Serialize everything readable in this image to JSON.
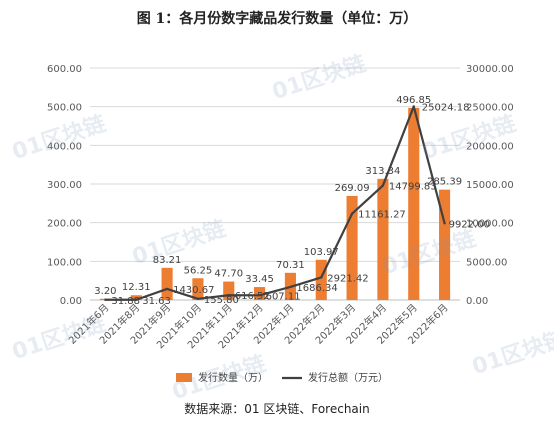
{
  "title": "图 1：各月份数字藏品发行数量（单位：万）",
  "source": "数据来源：01 区块链、Forechain",
  "watermark": "01区块链",
  "colors": {
    "bar": "#ED7D31",
    "line": "#404040",
    "axis_text": "#595959",
    "grid": "#D9D9D9"
  },
  "chart_data": {
    "type": "bar",
    "title": "图 1：各月份数字藏品发行数量（单位：万）",
    "categories": [
      "2021年6月",
      "2021年8月",
      "2021年9月",
      "2021年10月",
      "2021年11月",
      "2021年12月",
      "2022年1月",
      "2022年2月",
      "2022年3月",
      "2022年4月",
      "2022年5月",
      "2022年6月"
    ],
    "series": [
      {
        "name": "发行数量（万）",
        "type": "bar",
        "axis": "left",
        "values": [
          3.2,
          12.31,
          83.21,
          56.25,
          47.7,
          33.45,
          70.31,
          103.97,
          269.09,
          313.34,
          496.85,
          285.39
        ],
        "labels": [
          "3.20",
          "12.31",
          "83.21",
          "56.25",
          "47.70",
          "33.45",
          "70.31",
          "103.97",
          "269.09",
          "313.34",
          "496.85",
          "285.39"
        ]
      },
      {
        "name": "发行总额（万元）",
        "type": "line",
        "axis": "right",
        "values": [
          31.88,
          31.63,
          1430.67,
          155.8,
          616.52,
          607.11,
          1686.34,
          2921.42,
          11161.27,
          14799.83,
          25024.18,
          9922.0
        ],
        "labels": [
          "31.88",
          "31.63",
          "1430.67",
          "155.80",
          "616.52",
          "607.11",
          "1686.34",
          "2921.42",
          "11161.27",
          "14799.83",
          "25024.18",
          "9922.00"
        ]
      }
    ],
    "y_left": {
      "min": 0,
      "max": 600,
      "ticks": [
        "0.00",
        "100.00",
        "200.00",
        "300.00",
        "400.00",
        "500.00",
        "600.00"
      ]
    },
    "y_right": {
      "min": 0,
      "max": 30000,
      "ticks": [
        "0.00",
        "5000.00",
        "10000.00",
        "15000.00",
        "20000.00",
        "25000.00",
        "30000.00"
      ]
    },
    "grid": true,
    "legend": "bottom"
  }
}
